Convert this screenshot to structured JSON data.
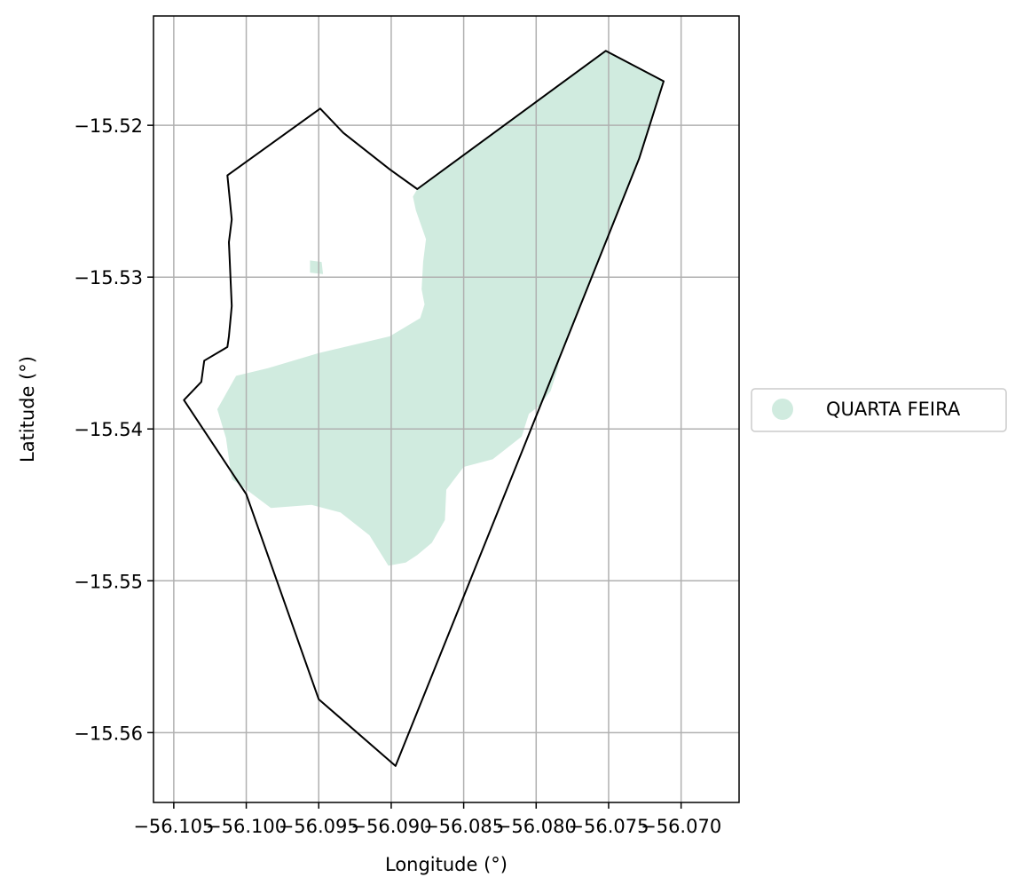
{
  "chart_data": {
    "type": "map",
    "xlabel": "Longitude (°)",
    "ylabel": "Latitude (°)",
    "xlim": [
      -56.1064,
      -56.066
    ],
    "ylim": [
      -15.5646,
      -15.5128
    ],
    "grid": true,
    "x_ticks": [
      {
        "value": -56.105,
        "label": "−56.105"
      },
      {
        "value": -56.1,
        "label": "−56.100"
      },
      {
        "value": -56.095,
        "label": "−56.095"
      },
      {
        "value": -56.09,
        "label": "−56.090"
      },
      {
        "value": -56.085,
        "label": "−56.085"
      },
      {
        "value": -56.08,
        "label": "−56.080"
      },
      {
        "value": -56.075,
        "label": "−56.075"
      },
      {
        "value": -56.07,
        "label": "−56.070"
      }
    ],
    "y_ticks": [
      {
        "value": -15.52,
        "label": "−15.52"
      },
      {
        "value": -15.53,
        "label": "−15.53"
      },
      {
        "value": -15.54,
        "label": "−15.54"
      },
      {
        "value": -15.55,
        "label": "−15.55"
      },
      {
        "value": -15.56,
        "label": "−15.56"
      }
    ],
    "legend": {
      "placement": "center-right-outside",
      "entries": [
        {
          "label": "QUARTA FEIRA",
          "color": "#d0ebdf"
        }
      ]
    },
    "boundary": {
      "stroke": "#000000",
      "coords": [
        [
          -56.1013,
          -15.5233
        ],
        [
          -56.0949,
          -15.5189
        ],
        [
          -56.0933,
          -15.5205
        ],
        [
          -56.0901,
          -15.5229
        ],
        [
          -56.0882,
          -15.5242
        ],
        [
          -56.0752,
          -15.5151
        ],
        [
          -56.0712,
          -15.5171
        ],
        [
          -56.0729,
          -15.5222
        ],
        [
          -56.0809,
          -15.5413
        ],
        [
          -56.0897,
          -15.5622
        ],
        [
          -56.095,
          -15.5578
        ],
        [
          -56.1,
          -15.5443
        ],
        [
          -56.1043,
          -15.5381
        ],
        [
          -56.1031,
          -15.5369
        ],
        [
          -56.1029,
          -15.5355
        ],
        [
          -56.1013,
          -15.5346
        ],
        [
          -56.1012,
          -15.5339
        ],
        [
          -56.101,
          -15.5319
        ],
        [
          -56.1012,
          -15.5277
        ],
        [
          -56.101,
          -15.5262
        ],
        [
          -56.1013,
          -15.5233
        ]
      ]
    },
    "zones": [
      {
        "name": "QUARTA FEIRA",
        "fill": "#d0ebdf",
        "polygons": [
          [
            [
              -56.0882,
              -15.5242
            ],
            [
              -56.0752,
              -15.5151
            ],
            [
              -56.0712,
              -15.5171
            ],
            [
              -56.0729,
              -15.5222
            ],
            [
              -56.0783,
              -15.535
            ],
            [
              -56.0785,
              -15.536
            ],
            [
              -56.079,
              -15.5375
            ],
            [
              -56.0798,
              -15.5385
            ],
            [
              -56.0805,
              -15.539
            ],
            [
              -56.081,
              -15.5405
            ],
            [
              -56.083,
              -15.542
            ],
            [
              -56.085,
              -15.5425
            ],
            [
              -56.0862,
              -15.544
            ],
            [
              -56.0863,
              -15.546
            ],
            [
              -56.0872,
              -15.5475
            ],
            [
              -56.0882,
              -15.5483
            ],
            [
              -56.089,
              -15.5488
            ],
            [
              -56.0902,
              -15.549
            ],
            [
              -56.0915,
              -15.547
            ],
            [
              -56.0935,
              -15.5455
            ],
            [
              -56.0955,
              -15.545
            ],
            [
              -56.0983,
              -15.5452
            ],
            [
              -56.0997,
              -15.5442
            ],
            [
              -56.101,
              -15.5433
            ],
            [
              -56.1014,
              -15.5406
            ],
            [
              -56.102,
              -15.5387
            ],
            [
              -56.1007,
              -15.5365
            ],
            [
              -56.0985,
              -15.536
            ],
            [
              -56.095,
              -15.535
            ],
            [
              -56.0901,
              -15.5339
            ],
            [
              -56.088,
              -15.5327
            ],
            [
              -56.0877,
              -15.5318
            ],
            [
              -56.0879,
              -15.5308
            ],
            [
              -56.0878,
              -15.529
            ],
            [
              -56.0876,
              -15.5275
            ],
            [
              -56.0883,
              -15.5256
            ],
            [
              -56.0885,
              -15.5247
            ],
            [
              -56.0882,
              -15.5242
            ]
          ],
          [
            [
              -56.0948,
              -15.529
            ],
            [
              -56.0956,
              -15.5289
            ],
            [
              -56.0956,
              -15.5297
            ],
            [
              -56.0947,
              -15.5298
            ]
          ]
        ]
      }
    ]
  }
}
